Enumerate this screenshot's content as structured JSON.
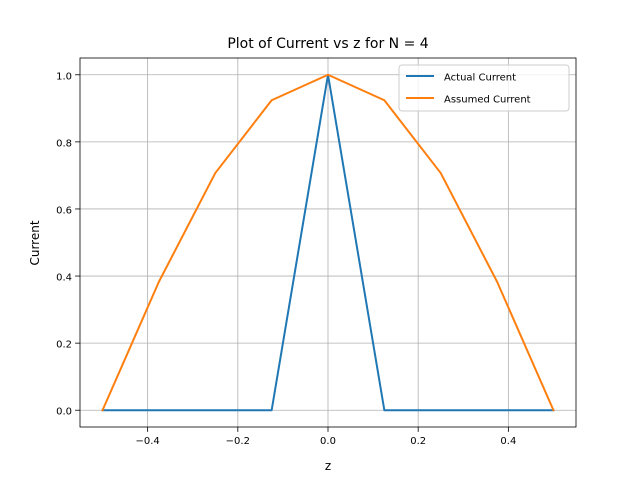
{
  "chart_data": {
    "type": "line",
    "title": "Plot of Current vs z for N = 4",
    "xlabel": "z",
    "ylabel": "Current",
    "xlim": [
      -0.55,
      0.55
    ],
    "ylim": [
      -0.05,
      1.05
    ],
    "xticks": [
      -0.4,
      -0.2,
      0.0,
      0.2,
      0.4
    ],
    "xtick_labels": [
      "−0.4",
      "−0.2",
      "0.0",
      "0.2",
      "0.4"
    ],
    "yticks": [
      0.0,
      0.2,
      0.4,
      0.6,
      0.8,
      1.0
    ],
    "ytick_labels": [
      "0.0",
      "0.2",
      "0.4",
      "0.6",
      "0.8",
      "1.0"
    ],
    "grid": true,
    "legend_position": "top-right",
    "series": [
      {
        "name": "Actual Current",
        "color": "#1f77b4",
        "x": [
          -0.5,
          -0.375,
          -0.25,
          -0.125,
          0.0,
          0.125,
          0.25,
          0.375,
          0.5
        ],
        "y": [
          0.0,
          0.0,
          0.0,
          0.0,
          1.0,
          0.0,
          0.0,
          0.0,
          0.0
        ]
      },
      {
        "name": "Assumed Current",
        "color": "#ff7f0e",
        "x": [
          -0.5,
          -0.375,
          -0.25,
          -0.125,
          0.0,
          0.125,
          0.25,
          0.375,
          0.5
        ],
        "y": [
          0.0,
          0.383,
          0.707,
          0.924,
          1.0,
          0.924,
          0.707,
          0.383,
          0.0
        ]
      }
    ]
  }
}
